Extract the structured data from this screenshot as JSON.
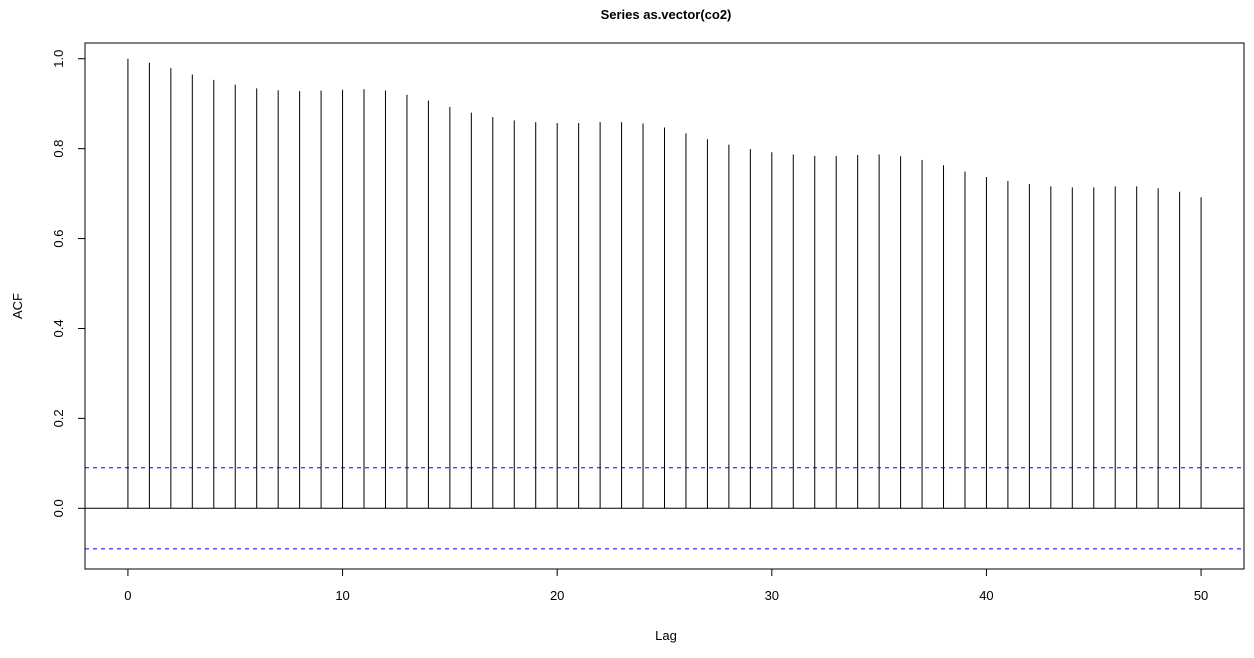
{
  "chart_data": {
    "type": "bar",
    "title": "Series  as.vector(co2)",
    "xlabel": "Lag",
    "ylabel": "ACF",
    "x": [
      0,
      1,
      2,
      3,
      4,
      5,
      6,
      7,
      8,
      9,
      10,
      11,
      12,
      13,
      14,
      15,
      16,
      17,
      18,
      19,
      20,
      21,
      22,
      23,
      24,
      25,
      26,
      27,
      28,
      29,
      30,
      31,
      32,
      33,
      34,
      35,
      36,
      37,
      38,
      39,
      40,
      41,
      42,
      43,
      44,
      45,
      46,
      47,
      48,
      49,
      50
    ],
    "values": [
      1.0,
      0.991,
      0.979,
      0.965,
      0.953,
      0.942,
      0.934,
      0.93,
      0.928,
      0.929,
      0.931,
      0.932,
      0.929,
      0.92,
      0.907,
      0.893,
      0.88,
      0.87,
      0.863,
      0.859,
      0.857,
      0.857,
      0.859,
      0.859,
      0.856,
      0.847,
      0.834,
      0.821,
      0.809,
      0.799,
      0.792,
      0.787,
      0.784,
      0.784,
      0.786,
      0.787,
      0.783,
      0.775,
      0.763,
      0.749,
      0.737,
      0.728,
      0.721,
      0.716,
      0.714,
      0.714,
      0.716,
      0.716,
      0.712,
      0.704,
      0.692
    ],
    "confidence_bound": 0.0902,
    "xlim": [
      -2,
      52
    ],
    "ylim": [
      -0.135,
      1.035
    ],
    "x_ticks": [
      0,
      10,
      20,
      30,
      40,
      50
    ],
    "y_ticks": [
      0.0,
      0.2,
      0.4,
      0.6,
      0.8,
      1.0
    ],
    "x_tick_labels": [
      "0",
      "10",
      "20",
      "30",
      "40",
      "50"
    ],
    "y_tick_labels": [
      "0.0",
      "0.2",
      "0.4",
      "0.6",
      "0.8",
      "1.0"
    ],
    "grid": false,
    "colors": {
      "bars": "#000000",
      "zero_line": "#000000",
      "confidence_lines": "#0000ff",
      "frame": "#000000"
    }
  }
}
